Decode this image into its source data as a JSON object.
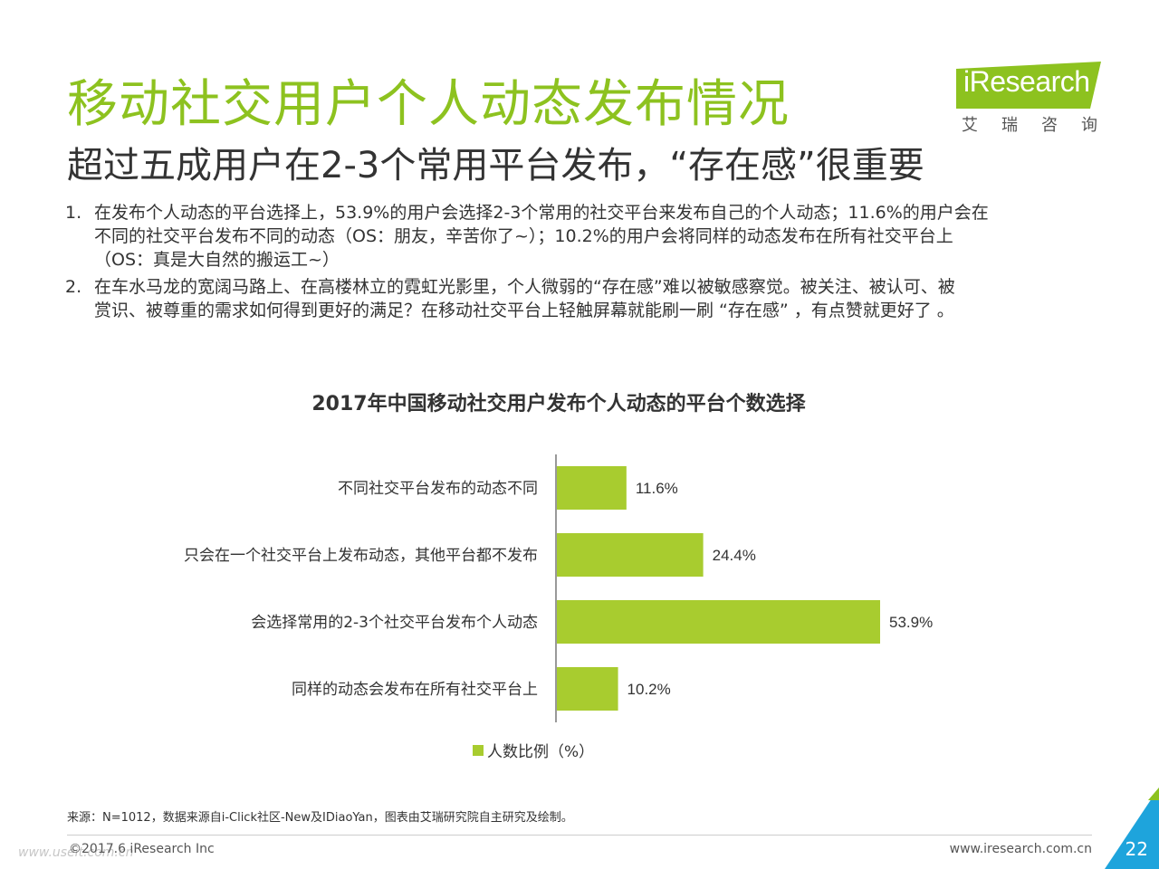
{
  "header": {
    "title": "移动社交用户个人动态发布情况",
    "subtitle": "超过五成用户在2-3个常用平台发布，“存在感”很重要"
  },
  "logo": {
    "brand": "iResearch",
    "cn": "艾瑞咨询",
    "color": "#8dc21f"
  },
  "points": [
    {
      "num": "1.",
      "lines": [
        "在发布个人动态的平台选择上，53.9%的用户会选择2-3个常用的社交平台来发布自己的个人动态；11.6%的用户会在",
        "不同的社交平台发布不同的动态（OS：朋友，辛苦你了~）；10.2%的用户会将同样的动态发布在所有社交平台上",
        "（OS：真是大自然的搬运工~）"
      ]
    },
    {
      "num": "2.",
      "lines": [
        "在车水马龙的宽阔马路上、在高楼林立的霓虹光影里，个人微弱的“存在感”难以被敏感察觉。被关注、被认可、被",
        "赏识、被尊重的需求如何得到更好的满足？在移动社交平台上轻触屏幕就能刷一刷 “存在感” ，有点赞就更好了 。"
      ]
    }
  ],
  "chart_data": {
    "type": "bar",
    "orientation": "horizontal",
    "title": "2017年中国移动社交用户发布个人动态的平台个数选择",
    "categories": [
      "不同社交平台发布的动态不同",
      "只会在一个社交平台上发布动态，其他平台都不发布",
      "会选择常用的2-3个社交平台发布个人动态",
      "同样的动态会发布在所有社交平台上"
    ],
    "series": [
      {
        "name": "人数比例（%）",
        "values": [
          11.6,
          24.4,
          53.9,
          10.2
        ]
      }
    ],
    "value_labels": [
      "11.6%",
      "24.4%",
      "53.9%",
      "10.2%"
    ],
    "xlim": [
      0,
      60
    ],
    "grid": false,
    "legend": "bottom",
    "bar_color": "#a8cc2f"
  },
  "footer": {
    "source": "来源：N=1012，数据来源自i-Click社区-New及IDiaoYan，图表由艾瑞研究院自主研究及绘制。",
    "copyright": "©2017.6 iResearch Inc",
    "website": "www.iresearch.com.cn",
    "page": "22",
    "watermark": "www.useit.com.cn",
    "accent": "#1ea4dc"
  }
}
